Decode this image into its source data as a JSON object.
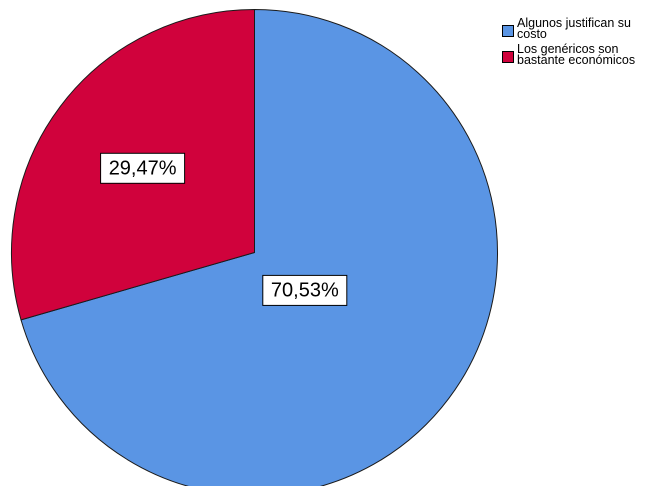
{
  "chart_data": {
    "type": "pie",
    "categories": [
      "Algunos justifican su costo",
      "Los genéricos son bastante económicos"
    ],
    "values": [
      70.53,
      29.47
    ],
    "data_labels": [
      "70,53%",
      "29,47%"
    ],
    "colors": [
      "#5A95E4",
      "#D0023C"
    ],
    "start_angle_deg": 0,
    "direction": "clockwise",
    "legend_position": "top-right",
    "title": ""
  }
}
